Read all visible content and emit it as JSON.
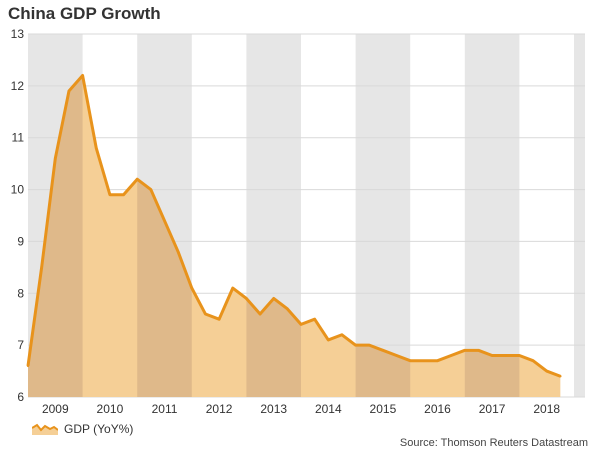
{
  "chart_data": {
    "type": "area",
    "title": "China GDP Growth",
    "xlabel": "",
    "ylabel": "",
    "ylim": [
      6,
      13
    ],
    "yticks": [
      6,
      7,
      8,
      9,
      10,
      11,
      12,
      13
    ],
    "years": [
      "2009",
      "2010",
      "2011",
      "2012",
      "2013",
      "2014",
      "2015",
      "2016",
      "2017",
      "2018"
    ],
    "quarters": [
      "2009Q1",
      "2009Q2",
      "2009Q3",
      "2009Q4",
      "2010Q1",
      "2010Q2",
      "2010Q3",
      "2010Q4",
      "2011Q1",
      "2011Q2",
      "2011Q3",
      "2011Q4",
      "2012Q1",
      "2012Q2",
      "2012Q3",
      "2012Q4",
      "2013Q1",
      "2013Q2",
      "2013Q3",
      "2013Q4",
      "2014Q1",
      "2014Q2",
      "2014Q3",
      "2014Q4",
      "2015Q1",
      "2015Q2",
      "2015Q3",
      "2015Q4",
      "2016Q1",
      "2016Q2",
      "2016Q3",
      "2016Q4",
      "2017Q1",
      "2017Q2",
      "2017Q3",
      "2017Q4",
      "2018Q1",
      "2018Q2",
      "2018Q3",
      "2018Q4"
    ],
    "series": [
      {
        "name": "GDP (YoY%)",
        "values": [
          6.6,
          8.5,
          10.6,
          11.9,
          12.2,
          10.8,
          9.9,
          9.9,
          10.2,
          10.0,
          9.4,
          8.8,
          8.1,
          7.6,
          7.5,
          8.1,
          7.9,
          7.6,
          7.9,
          7.7,
          7.4,
          7.5,
          7.1,
          7.2,
          7.0,
          7.0,
          6.9,
          6.8,
          6.7,
          6.7,
          6.7,
          6.8,
          6.9,
          6.9,
          6.8,
          6.8,
          6.8,
          6.7,
          6.5,
          6.4
        ]
      }
    ],
    "legend": "bottom-left",
    "source": "Source: Thomson Reuters Datastream",
    "colors": {
      "line": "#e8931c",
      "fill": "#f5cf96",
      "band_odd": "#e6e6e6",
      "overlap": "#dfb98a",
      "grid": "#d9d9d9"
    }
  }
}
